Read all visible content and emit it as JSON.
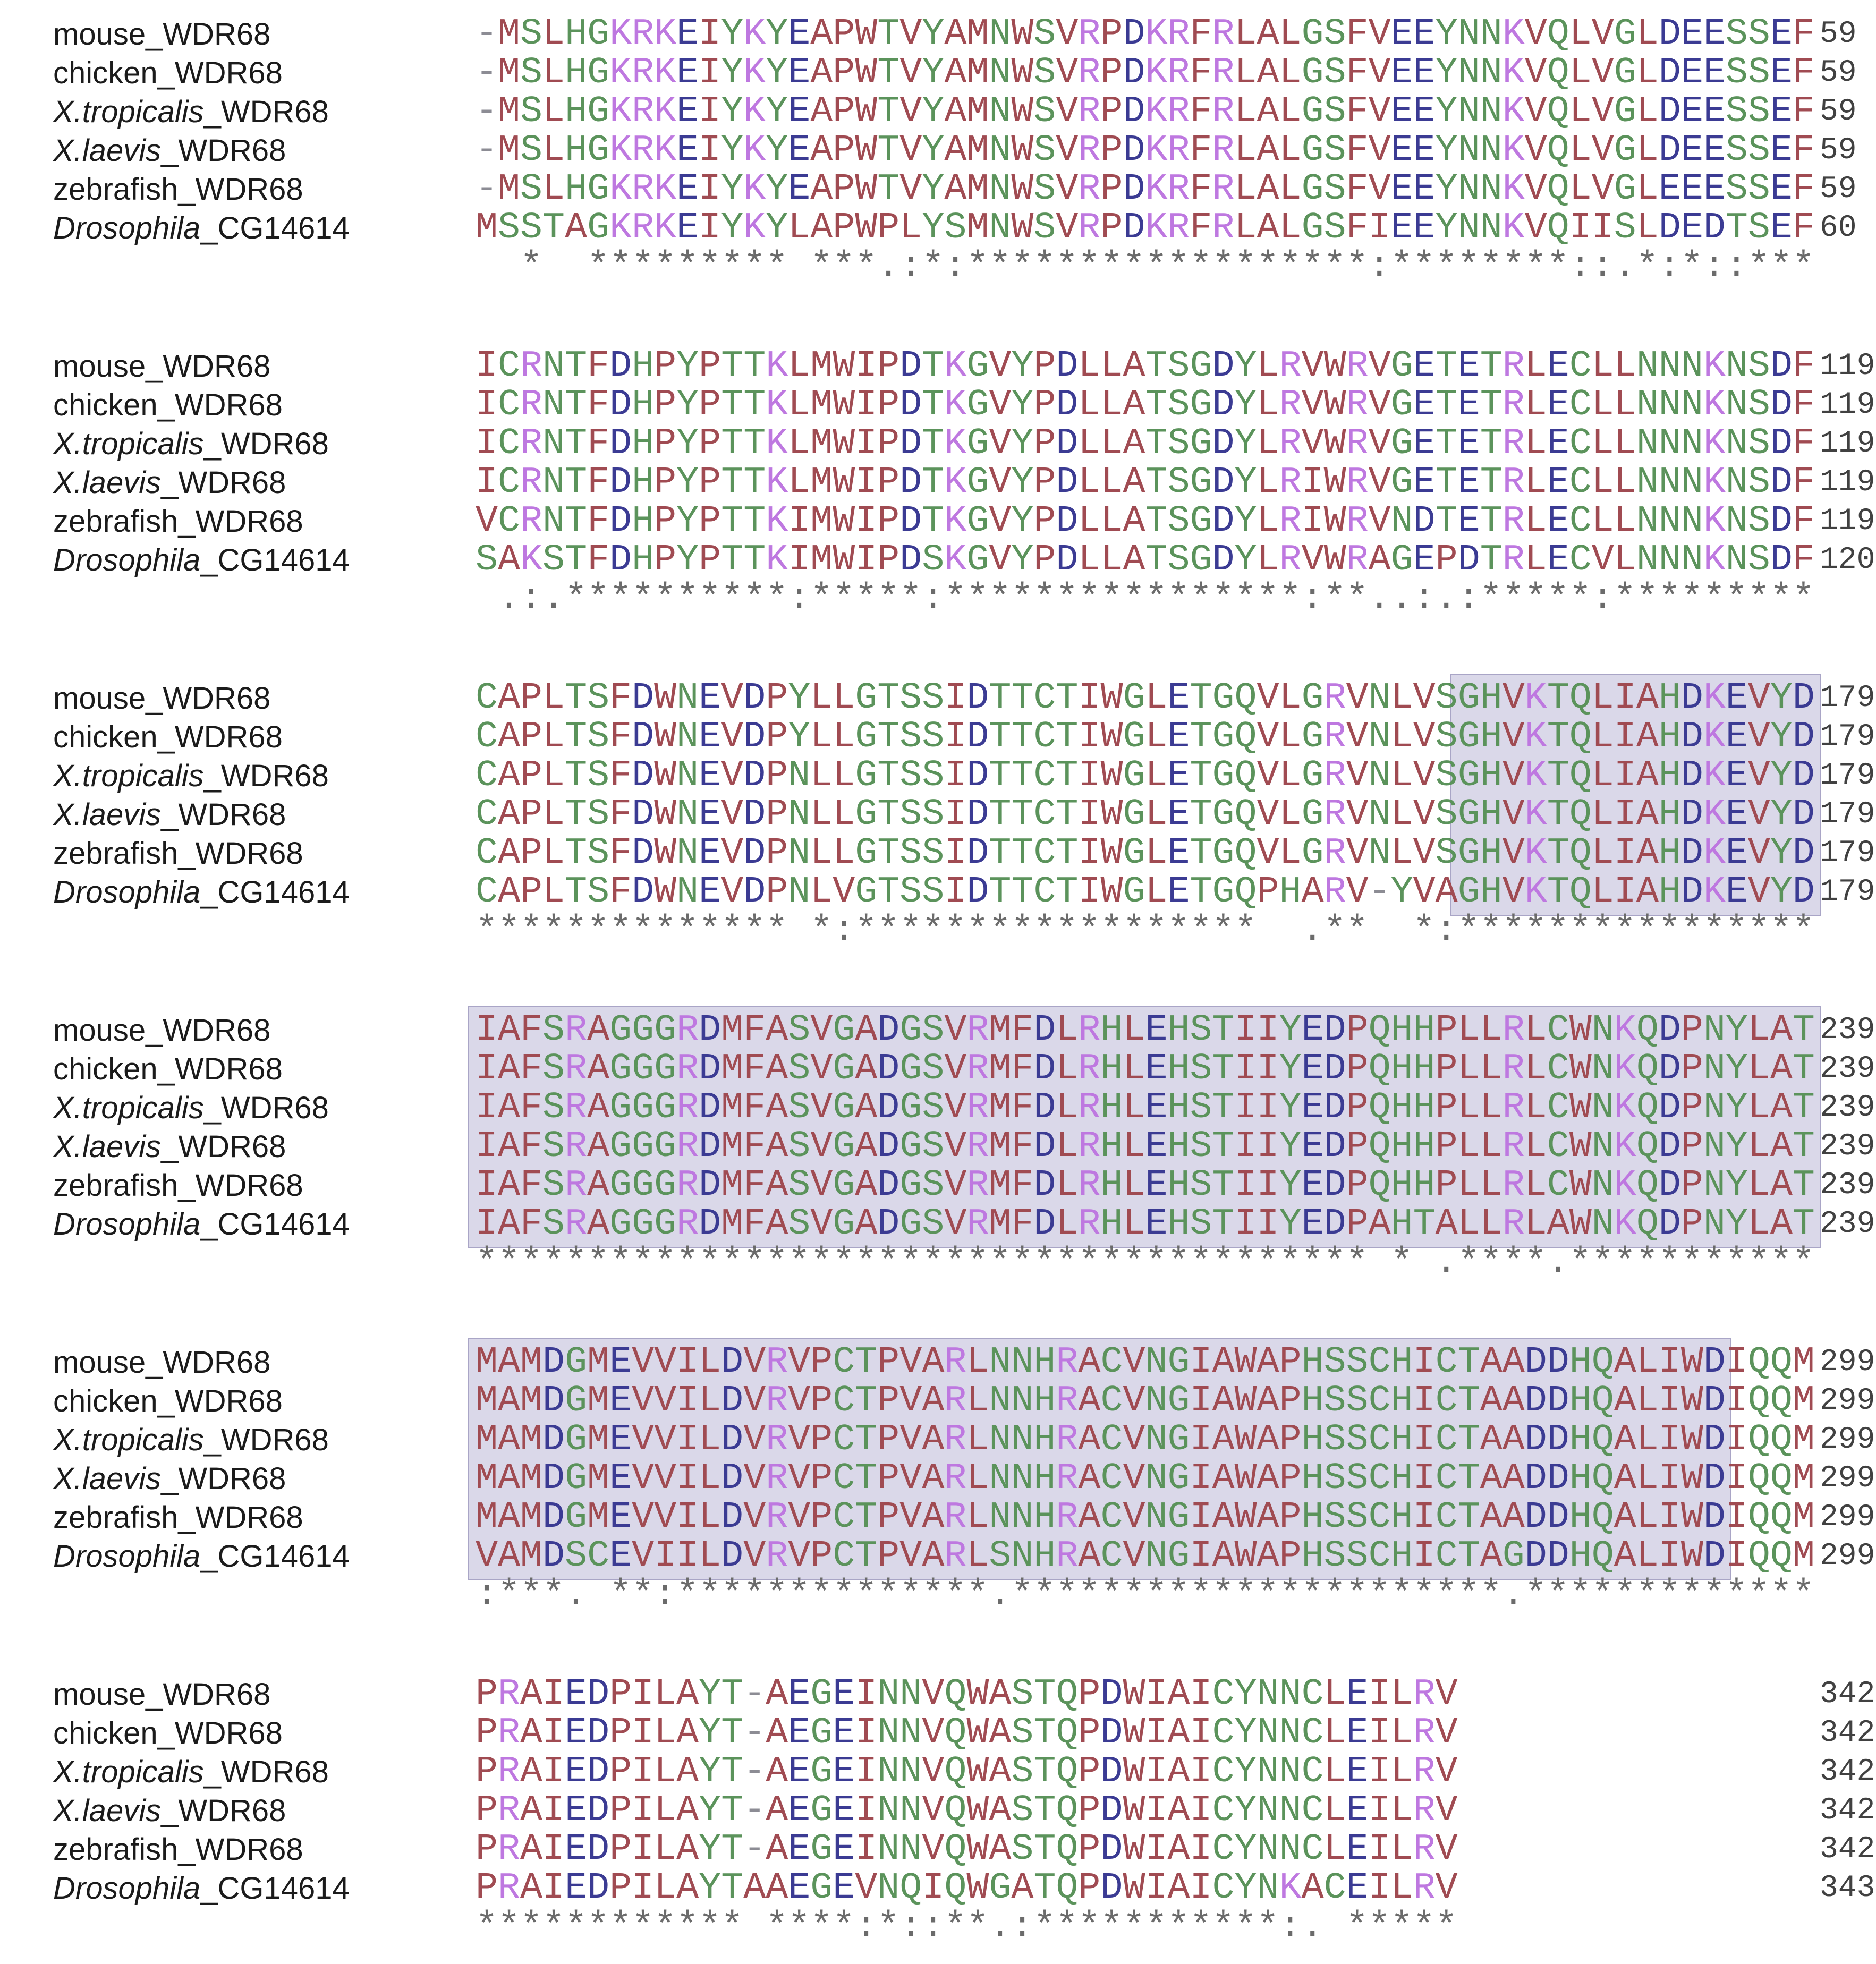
{
  "palette": {
    "red": "#a04b52",
    "blue": "#3b3b93",
    "magenta": "#be78e0",
    "green": "#5b935b",
    "gap": "#8c8c94",
    "consensus_text": "#6b6b6b",
    "label_text": "#1b1b1b",
    "number_text": "#414141",
    "highlight_fill": "rgba(150,144,193,0.35)",
    "highlight_border": "rgba(130,124,170,0.55)"
  },
  "residue_classes": {
    "red": "AVFPMILW",
    "blue": "DE",
    "magenta": "RK",
    "green": "STYHCNGQ"
  },
  "alignment": {
    "labels": [
      {
        "italic": "",
        "text": "mouse_WDR68"
      },
      {
        "italic": "",
        "text": "chicken_WDR68"
      },
      {
        "italic": "X.tropicalis",
        "text": "_WDR68"
      },
      {
        "italic": "X.laevis",
        "text": "_WDR68"
      },
      {
        "italic": "",
        "text": "zebrafish_WDR68"
      },
      {
        "italic": "Drosophila",
        "text": "_CG14614"
      }
    ],
    "blocks": [
      {
        "rows": [
          "-MSLHGKRKEIYKYEAPWTVYAMNWSVRPDKRFRLALGSFVEEYNNKVQLVGLDEESSEF",
          "-MSLHGKRKEIYKYEAPWTVYAMNWSVRPDKRFRLALGSFVEEYNNKVQLVGLDEESSEF",
          "-MSLHGKRKEIYKYEAPWTVYAMNWSVRPDKRFRLALGSFVEEYNNKVQLVGLDEESSEF",
          "-MSLHGKRKEIYKYEAPWTVYAMNWSVRPDKRFRLALGSFVEEYNNKVQLVGLDEESSEF",
          "-MSLHGKRKEIYKYEAPWTVYAMNWSVRPDKRFRLALGSFVEEYNNKVQLVGLEEESSEF",
          "MSSTAGKRKEIYKYLAPWPLYSMNWSVRPDKRFRLALGSFIEEYNNKVQIISLDEDTSEF"
        ],
        "numbers": [
          "59",
          "59",
          "59",
          "59",
          "59",
          "60"
        ],
        "consensus": "  *  ********* ***.:*:******************:********::.*:*::***",
        "highlight": null
      },
      {
        "rows": [
          "ICRNTFDHPYPTTKLMWIPDTKGVYPDLLATSGDYLRVWRVGETETRLECLLNNNKNSDF",
          "ICRNTFDHPYPTTKLMWIPDTKGVYPDLLATSGDYLRVWRVGETETRLECLLNNNKNSDF",
          "ICRNTFDHPYPTTKLMWIPDTKGVYPDLLATSGDYLRVWRVGETETRLECLLNNNKNSDF",
          "ICRNTFDHPYPTTKLMWIPDTKGVYPDLLATSGDYLRIWRVGETETRLECLLNNNKNSDF",
          "VCRNTFDHPYPTTKIMWIPDTKGVYPDLLATSGDYLRIWRVNDTETRLECLLNNNKNSDF",
          "SAKSTFDHPYPTTKIMWIPDSKGVYPDLLATSGDYLRVWRAGEPDTRLECVLNNNKNSDF"
        ],
        "numbers": [
          "119",
          "119",
          "119",
          "119",
          "119",
          "120"
        ],
        "consensus": " .:.**********:*****:****************:**..:.:*****:*********",
        "highlight": null
      },
      {
        "rows": [
          "CAPLTSFDWNEVDPYLLGTSSIDTTCTIWGLETGQVLGRVNLVSGHVKTQLIAHDKEVYD",
          "CAPLTSFDWNEVDPYLLGTSSIDTTCTIWGLETGQVLGRVNLVSGHVKTQLIAHDKEVYD",
          "CAPLTSFDWNEVDPNLLGTSSIDTTCTIWGLETGQVLGRVNLVSGHVKTQLIAHDKEVYD",
          "CAPLTSFDWNEVDPNLLGTSSIDTTCTIWGLETGQVLGRVNLVSGHVKTQLIAHDKEVYD",
          "CAPLTSFDWNEVDPNLLGTSSIDTTCTIWGLETGQVLGRVNLVSGHVKTQLIAHDKEVYD",
          "CAPLTSFDWNEVDPNLVGTSSIDTTCTIWGLETGQPHARV-YVAGHVKTQLIAHDKEVYD"
        ],
        "numbers": [
          "179",
          "179",
          "179",
          "179",
          "179",
          "179"
        ],
        "consensus": "************** *:******************  .**  *:****************",
        "highlight": {
          "start": 44,
          "end": 60
        }
      },
      {
        "rows": [
          "IAFSRAGGGRDMFASVGADGSVRMFDLRHLEHSTIIYEDPQHHPLLRLCWNKQDPNYLAT",
          "IAFSRAGGGRDMFASVGADGSVRMFDLRHLEHSTIIYEDPQHHPLLRLCWNKQDPNYLAT",
          "IAFSRAGGGRDMFASVGADGSVRMFDLRHLEHSTIIYEDPQHHPLLRLCWNKQDPNYLAT",
          "IAFSRAGGGRDMFASVGADGSVRMFDLRHLEHSTIIYEDPQHHPLLRLCWNKQDPNYLAT",
          "IAFSRAGGGRDMFASVGADGSVRMFDLRHLEHSTIIYEDPQHHPLLRLCWNKQDPNYLAT",
          "IAFSRAGGGRDMFASVGADGSVRMFDLRHLEHSTIIYEDPAHTALLRLAWNKQDPNYLAT"
        ],
        "numbers": [
          "239",
          "239",
          "239",
          "239",
          "239",
          "239"
        ],
        "consensus": "**************************************** * .****.***********",
        "highlight": {
          "start": 0,
          "end": 60
        }
      },
      {
        "rows": [
          "MAMDGMEVVILDVRVPCTPVARLNNHRACVNGIAWAPHSSCHICTAADDHQALIWDIQQM",
          "MAMDGMEVVILDVRVPCTPVARLNNHRACVNGIAWAPHSSCHICTAADDHQALIWDIQQM",
          "MAMDGMEVVILDVRVPCTPVARLNNHRACVNGIAWAPHSSCHICTAADDHQALIWDIQQM",
          "MAMDGMEVVILDVRVPCTPVARLNNHRACVNGIAWAPHSSCHICTAADDHQALIWDIQQM",
          "MAMDGMEVVILDVRVPCTPVARLNNHRACVNGIAWAPHSSCHICTAADDHQALIWDIQQM",
          "VAMDSCEVIILDVRVPCTPVARLSNHRACVNGIAWAPHSSCHICTAGDDHQALIWDIQQM"
        ],
        "numbers": [
          "299",
          "299",
          "299",
          "299",
          "299",
          "299"
        ],
        "consensus": ":***. **:**************.**********************.*************",
        "highlight": {
          "start": 0,
          "end": 56
        }
      },
      {
        "rows": [
          "PRAIEDPILAYT-AEGEINNVQWASTQPDWIAICYNNCLEILRV",
          "PRAIEDPILAYT-AEGEINNVQWASTQPDWIAICYNNCLEILRV",
          "PRAIEDPILAYT-AEGEINNVQWASTQPDWIAICYNNCLEILRV",
          "PRAIEDPILAYT-AEGEINNVQWASTQPDWIAICYNNCLEILRV",
          "PRAIEDPILAYT-AEGEINNVQWASTQPDWIAICYNNCLEILRV",
          "PRAIEDPILAYTAAEGEVNQIQWGATQPDWIAICYNKACEILRV"
        ],
        "numbers": [
          "342",
          "342",
          "342",
          "342",
          "342",
          "343"
        ],
        "consensus": "************ ****:*::**.:***********:. *****",
        "highlight": null
      }
    ]
  }
}
